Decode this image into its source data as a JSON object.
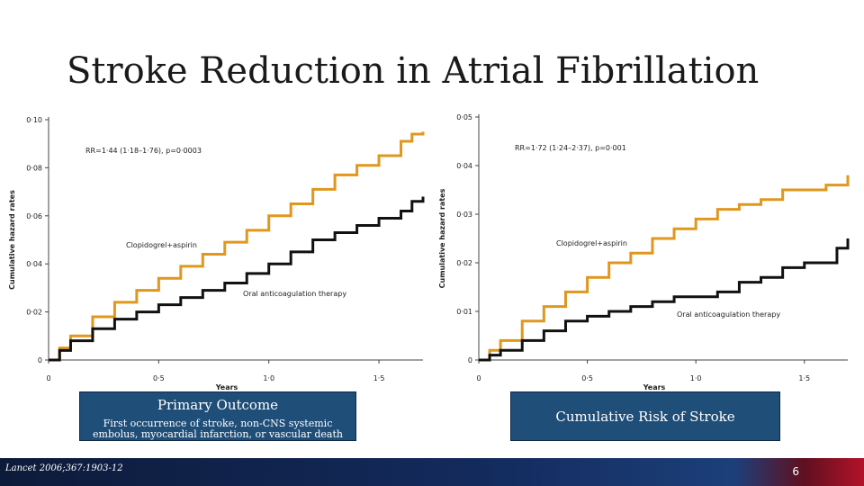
{
  "slide": {
    "title": "Stroke Reduction in Atrial Fibrillation",
    "reference": "Lancet 2006;367:1903-12",
    "page_number": "6"
  },
  "captions": {
    "left_main": "Primary Outcome",
    "left_sub": "First occurrence of stroke, non-CNS systemic embolus, myocardial infarction, or vascular death",
    "right_main": "Cumulative Risk of Stroke"
  },
  "colors": {
    "series_a": "#e0971e",
    "series_b": "#111111",
    "caption_bg": "#1f4e79"
  },
  "chart_data": [
    {
      "type": "line",
      "xlabel": "Years",
      "ylabel": "Cumulative hazard rates",
      "xlim": [
        0,
        1.7
      ],
      "ylim": [
        0,
        0.1
      ],
      "x_ticks": [
        "0",
        "0·5",
        "1·0",
        "1·5"
      ],
      "x_tick_values": [
        0,
        0.5,
        1.0,
        1.5
      ],
      "y_ticks": [
        "0",
        "0·02",
        "0·04",
        "0·06",
        "0·08",
        "0·10"
      ],
      "y_tick_values": [
        0,
        0.02,
        0.04,
        0.06,
        0.08,
        0.1
      ],
      "annotation": "RR=1·44 (1·18–1·76), p=0·0003",
      "series": [
        {
          "name": "Clopidogrel+aspirin",
          "color": "#e0971e",
          "x": [
            0,
            0.05,
            0.1,
            0.2,
            0.3,
            0.4,
            0.5,
            0.6,
            0.7,
            0.8,
            0.9,
            1.0,
            1.1,
            1.2,
            1.3,
            1.4,
            1.5,
            1.6,
            1.65,
            1.7
          ],
          "y": [
            0,
            0.005,
            0.01,
            0.018,
            0.024,
            0.029,
            0.034,
            0.039,
            0.044,
            0.049,
            0.054,
            0.06,
            0.065,
            0.071,
            0.077,
            0.081,
            0.085,
            0.091,
            0.094,
            0.095
          ]
        },
        {
          "name": "Oral anticoagulation therapy",
          "color": "#111111",
          "x": [
            0,
            0.05,
            0.1,
            0.2,
            0.3,
            0.4,
            0.5,
            0.6,
            0.7,
            0.8,
            0.9,
            1.0,
            1.1,
            1.2,
            1.3,
            1.4,
            1.5,
            1.6,
            1.65,
            1.7
          ],
          "y": [
            0,
            0.004,
            0.008,
            0.013,
            0.017,
            0.02,
            0.023,
            0.026,
            0.029,
            0.032,
            0.036,
            0.04,
            0.045,
            0.05,
            0.053,
            0.056,
            0.059,
            0.062,
            0.066,
            0.068
          ]
        }
      ]
    },
    {
      "type": "line",
      "xlabel": "Years",
      "ylabel": "Cumulative hazard rates",
      "xlim": [
        0,
        1.7
      ],
      "ylim": [
        0,
        0.05
      ],
      "x_ticks": [
        "0",
        "0·5",
        "1·0",
        "1·5"
      ],
      "x_tick_values": [
        0,
        0.5,
        1.0,
        1.5
      ],
      "y_ticks": [
        "0",
        "0·01",
        "0·02",
        "0·03",
        "0·04",
        "0·05"
      ],
      "y_tick_values": [
        0,
        0.01,
        0.02,
        0.03,
        0.04,
        0.05
      ],
      "annotation": "RR=1·72 (1·24–2·37), p=0·001",
      "series": [
        {
          "name": "Clopidogrel+aspirin",
          "color": "#e0971e",
          "x": [
            0,
            0.05,
            0.1,
            0.2,
            0.3,
            0.4,
            0.5,
            0.6,
            0.7,
            0.8,
            0.9,
            1.0,
            1.1,
            1.2,
            1.3,
            1.4,
            1.5,
            1.6,
            1.65,
            1.7
          ],
          "y": [
            0,
            0.002,
            0.004,
            0.008,
            0.011,
            0.014,
            0.017,
            0.02,
            0.022,
            0.025,
            0.027,
            0.029,
            0.031,
            0.032,
            0.033,
            0.035,
            0.035,
            0.036,
            0.036,
            0.038
          ]
        },
        {
          "name": "Oral anticoagulation therapy",
          "color": "#111111",
          "x": [
            0,
            0.05,
            0.1,
            0.2,
            0.3,
            0.4,
            0.5,
            0.6,
            0.7,
            0.8,
            0.9,
            1.0,
            1.1,
            1.2,
            1.3,
            1.4,
            1.5,
            1.6,
            1.65,
            1.7
          ],
          "y": [
            0,
            0.001,
            0.002,
            0.004,
            0.006,
            0.008,
            0.009,
            0.01,
            0.011,
            0.012,
            0.013,
            0.013,
            0.014,
            0.016,
            0.017,
            0.019,
            0.02,
            0.02,
            0.023,
            0.025
          ]
        }
      ]
    }
  ]
}
